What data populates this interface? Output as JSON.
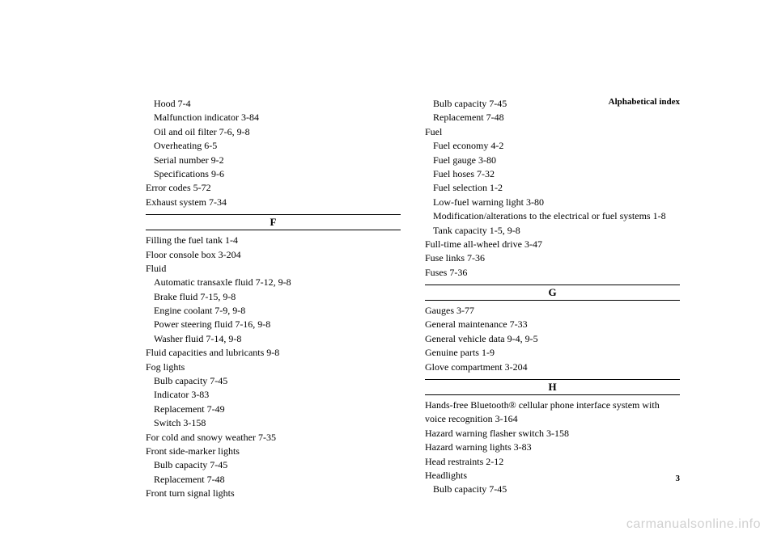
{
  "header": "Alphabetical index",
  "page_number": "3",
  "watermark": "carmanualsonline.info",
  "left_column": {
    "pre_entries": [
      {
        "text": "Hood   7-4",
        "indent": 1
      },
      {
        "text": "Malfunction indicator   3-84",
        "indent": 1
      },
      {
        "text": "Oil and oil filter   7-6, 9-8",
        "indent": 1
      },
      {
        "text": "Overheating   6-5",
        "indent": 1
      },
      {
        "text": "Serial number   9-2",
        "indent": 1
      },
      {
        "text": "Specifications   9-6",
        "indent": 1
      },
      {
        "text": "Error codes   5-72",
        "indent": 0
      },
      {
        "text": "Exhaust system   7-34",
        "indent": 0
      }
    ],
    "section_F": "F",
    "f_entries": [
      {
        "text": "Filling the fuel tank   1-4",
        "indent": 0
      },
      {
        "text": "Floor console box   3-204",
        "indent": 0
      },
      {
        "text": "Fluid",
        "indent": 0
      },
      {
        "text": "Automatic transaxle fluid   7-12, 9-8",
        "indent": 1
      },
      {
        "text": "Brake fluid   7-15, 9-8",
        "indent": 1
      },
      {
        "text": "Engine coolant   7-9, 9-8",
        "indent": 1
      },
      {
        "text": "Power steering fluid   7-16, 9-8",
        "indent": 1
      },
      {
        "text": "Washer fluid   7-14, 9-8",
        "indent": 1
      },
      {
        "text": "Fluid capacities and lubricants   9-8",
        "indent": 0
      },
      {
        "text": "Fog lights",
        "indent": 0
      },
      {
        "text": "Bulb capacity   7-45",
        "indent": 1
      },
      {
        "text": "Indicator   3-83",
        "indent": 1
      },
      {
        "text": "Replacement   7-49",
        "indent": 1
      },
      {
        "text": "Switch   3-158",
        "indent": 1
      },
      {
        "text": "For cold and snowy weather   7-35",
        "indent": 0
      },
      {
        "text": "Front side-marker lights",
        "indent": 0
      },
      {
        "text": "Bulb capacity   7-45",
        "indent": 1
      },
      {
        "text": "Replacement   7-48",
        "indent": 1
      },
      {
        "text": "Front turn signal lights",
        "indent": 0
      }
    ]
  },
  "right_column": {
    "pre_entries": [
      {
        "text": "Bulb capacity   7-45",
        "indent": 1
      },
      {
        "text": "Replacement   7-48",
        "indent": 1
      },
      {
        "text": "Fuel",
        "indent": 0
      },
      {
        "text": "Fuel economy   4-2",
        "indent": 1
      },
      {
        "text": "Fuel gauge   3-80",
        "indent": 1
      },
      {
        "text": "Fuel hoses   7-32",
        "indent": 1
      },
      {
        "text": "Fuel selection   1-2",
        "indent": 1
      },
      {
        "text": "Low-fuel warning light   3-80",
        "indent": 1
      },
      {
        "text": "Modification/alterations to the electrical or fuel systems   1-8",
        "indent": 1
      },
      {
        "text": "Tank capacity   1-5, 9-8",
        "indent": 1
      },
      {
        "text": "Full-time all-wheel drive   3-47",
        "indent": 0
      },
      {
        "text": "Fuse links   7-36",
        "indent": 0
      },
      {
        "text": "Fuses   7-36",
        "indent": 0
      }
    ],
    "section_G": "G",
    "g_entries": [
      {
        "text": "Gauges   3-77",
        "indent": 0
      },
      {
        "text": "General maintenance   7-33",
        "indent": 0
      },
      {
        "text": "General vehicle data   9-4, 9-5",
        "indent": 0
      },
      {
        "text": "Genuine parts   1-9",
        "indent": 0
      },
      {
        "text": "Glove compartment   3-204",
        "indent": 0
      }
    ],
    "section_H": "H",
    "h_entries": [
      {
        "text": "Hands-free Bluetooth® cellular phone interface system with voice recognition   3-164",
        "indent": 0
      },
      {
        "text": "Hazard warning flasher switch   3-158",
        "indent": 0
      },
      {
        "text": "Hazard warning lights   3-83",
        "indent": 0
      },
      {
        "text": "Head restraints   2-12",
        "indent": 0
      },
      {
        "text": "Headlights",
        "indent": 0
      },
      {
        "text": "Bulb capacity   7-45",
        "indent": 1
      }
    ]
  }
}
